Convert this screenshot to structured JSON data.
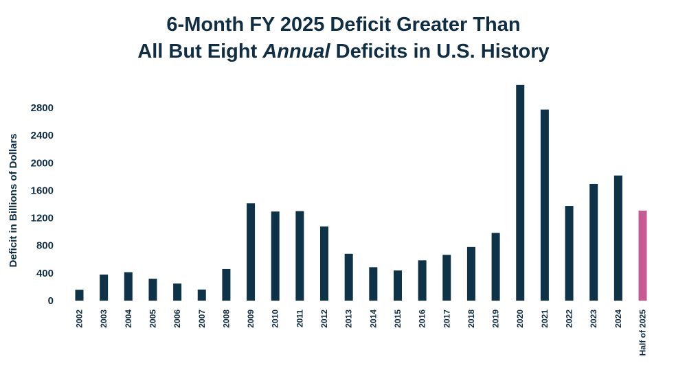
{
  "title": {
    "line1": "6-Month FY 2025 Deficit Greater Than",
    "line2_before": "All But Eight ",
    "line2_emph": "Annual",
    "line2_after": " Deficits in U.S. History"
  },
  "colors": {
    "text": "#0f2e44",
    "bar": "#0e3349",
    "highlight_bar": "#c75a93"
  },
  "chart_data": {
    "type": "bar",
    "title": "6-Month FY 2025 Deficit Greater Than All But Eight Annual Deficits in U.S. History",
    "xlabel": "",
    "ylabel": "Deficit in Billions of Dollars",
    "ylim": [
      0,
      3150
    ],
    "yticks": [
      0,
      400,
      800,
      1200,
      1600,
      2000,
      2400,
      2800
    ],
    "grid": false,
    "categories": [
      "2002",
      "2003",
      "2004",
      "2005",
      "2006",
      "2007",
      "2008",
      "2009",
      "2010",
      "2011",
      "2012",
      "2013",
      "2014",
      "2015",
      "2016",
      "2017",
      "2018",
      "2019",
      "2020",
      "2021",
      "2022",
      "2023",
      "2024",
      "Half of 2025"
    ],
    "values": [
      158,
      378,
      413,
      318,
      248,
      161,
      459,
      1413,
      1294,
      1300,
      1077,
      680,
      485,
      438,
      585,
      665,
      779,
      984,
      3132,
      2775,
      1375,
      1695,
      1817,
      1307
    ],
    "highlight_index": 23
  }
}
